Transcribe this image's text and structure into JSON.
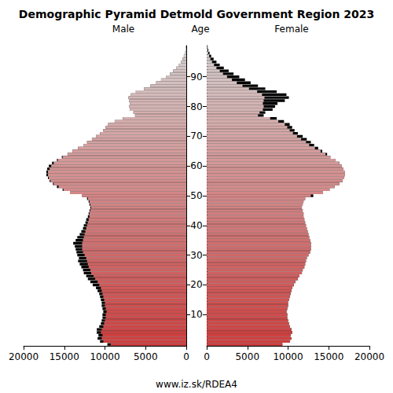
{
  "chart_data": {
    "type": "pyramid",
    "title": "Demographic Pyramid Detmold Government Region 2023",
    "y_label": "Age",
    "source": "www.iz.sk/RDEA4",
    "categories": [
      null,
      null,
      null,
      null,
      null,
      null,
      null,
      null,
      null,
      null,
      "10",
      null,
      null,
      null,
      null,
      null,
      null,
      null,
      null,
      null,
      "20",
      null,
      null,
      null,
      null,
      null,
      null,
      null,
      null,
      null,
      "30",
      null,
      null,
      null,
      null,
      null,
      null,
      null,
      null,
      null,
      "40",
      null,
      null,
      null,
      null,
      null,
      null,
      null,
      null,
      null,
      "50",
      null,
      null,
      null,
      null,
      null,
      null,
      null,
      null,
      null,
      "60",
      null,
      null,
      null,
      null,
      null,
      null,
      null,
      null,
      null,
      "70",
      null,
      null,
      null,
      null,
      null,
      null,
      null,
      null,
      null,
      "80",
      null,
      null,
      null,
      null,
      null,
      null,
      null,
      null,
      null,
      "90",
      null,
      null,
      null,
      null,
      null,
      null,
      null,
      null,
      null,
      null
    ],
    "series": [
      {
        "name": "Male",
        "color": "#000000",
        "values": [
          9700,
          10600,
          10900,
          10800,
          11000,
          11000,
          10700,
          10500,
          10400,
          10300,
          10300,
          10200,
          10300,
          10400,
          10400,
          10500,
          10600,
          10700,
          10900,
          11100,
          11500,
          11800,
          12100,
          12300,
          12600,
          12700,
          12900,
          13100,
          13300,
          13200,
          13400,
          13500,
          13600,
          13700,
          13900,
          13600,
          13400,
          13100,
          12900,
          12700,
          12600,
          12400,
          12300,
          12100,
          12000,
          11900,
          11800,
          11900,
          12000,
          12200,
          12800,
          14300,
          15200,
          15900,
          16400,
          16800,
          17000,
          17200,
          17200,
          17100,
          16900,
          16500,
          15900,
          15300,
          14600,
          14000,
          13300,
          12600,
          12200,
          11600,
          11100,
          10600,
          10200,
          9900,
          9600,
          8800,
          7800,
          6300,
          6500,
          6900,
          7000,
          6900,
          7000,
          7100,
          6800,
          6200,
          5200,
          4400,
          3700,
          3100,
          2500,
          2000,
          1600,
          1200,
          900,
          650,
          450,
          300,
          180,
          100,
          60
        ]
      },
      {
        "name": "Female",
        "color": "#000000",
        "values": [
          9300,
          10200,
          10400,
          10300,
          10500,
          10400,
          10200,
          10100,
          10000,
          9900,
          9900,
          9800,
          9900,
          10000,
          10000,
          10100,
          10200,
          10300,
          10400,
          10500,
          10700,
          10900,
          11200,
          11400,
          11700,
          11800,
          12000,
          12100,
          12200,
          12300,
          12500,
          12700,
          12800,
          12800,
          12800,
          12700,
          12600,
          12500,
          12400,
          12300,
          12200,
          12100,
          12000,
          11900,
          11900,
          11800,
          11700,
          11800,
          11900,
          12100,
          13100,
          14300,
          15100,
          15700,
          16300,
          16700,
          16900,
          17000,
          17000,
          16800,
          16600,
          16300,
          15800,
          15200,
          14800,
          14200,
          13700,
          13200,
          12800,
          12300,
          11800,
          11200,
          10800,
          10500,
          10200,
          9500,
          8600,
          7000,
          7200,
          8100,
          8400,
          8700,
          9600,
          10100,
          9800,
          8600,
          7200,
          6300,
          5400,
          4700,
          4000,
          3300,
          2700,
          2100,
          1600,
          1200,
          850,
          550,
          350,
          200,
          120
        ]
      }
    ],
    "colors": [
      "#d03c3c",
      "#d03d3d",
      "#d03f3f",
      "#d04040",
      "#d04242",
      "#d04343",
      "#d04545",
      "#d04646",
      "#d04848",
      "#d04949",
      "#d04b4b",
      "#d04c4c",
      "#d04e4e",
      "#d04f4f",
      "#d05151",
      "#d05252",
      "#d05454",
      "#d05555",
      "#d05757",
      "#d05858",
      "#d05a5a",
      "#d05b5b",
      "#d05d5d",
      "#d05e5e",
      "#d06060",
      "#d06161",
      "#d06262",
      "#d06464",
      "#d06565",
      "#d06767",
      "#d06868",
      "#d06a6a",
      "#d06b6b",
      "#d06d6d",
      "#d06e6e",
      "#d07070",
      "#d07171",
      "#d07373",
      "#d07474",
      "#d07676",
      "#d07777",
      "#d07979",
      "#d07a7a",
      "#d07c7c",
      "#d07d7d",
      "#d07f7f",
      "#d08080",
      "#d08282",
      "#d08383",
      "#d08585",
      "#d48686",
      "#d48787",
      "#d48989",
      "#d48a8a",
      "#d48c8c",
      "#d48d8d",
      "#d48f8f",
      "#d49090",
      "#d49292",
      "#d49393",
      "#d49595",
      "#d49696",
      "#d49898",
      "#d49999",
      "#d49b9b",
      "#d49c9c",
      "#d49e9e",
      "#d49f9f",
      "#d4a1a1",
      "#d4a2a2",
      "#d4a4a4",
      "#d4a5a5",
      "#d4a7a7",
      "#d4a8a8",
      "#d4aaaa",
      "#d4abab",
      "#d4acac",
      "#d4aeae",
      "#d4afaf",
      "#d4b1b1",
      "#d4b2b2",
      "#d4b4b4",
      "#d4b5b5",
      "#d4b7b7",
      "#d4b8b8",
      "#d4baba",
      "#d4bbbb",
      "#d4bdbd",
      "#d4bebe",
      "#d4c0c0",
      "#d4c1c1",
      "#d4c3c3",
      "#d4c4c4",
      "#d4c6c6",
      "#d4c7c7",
      "#d4c9c9",
      "#d4caca",
      "#d4cccc",
      "#d4cdcd",
      "#d4cfcf",
      "#d4d0d0"
    ],
    "xlim": [
      0,
      20000
    ],
    "xticks": [
      0,
      5000,
      10000,
      15000,
      20000
    ],
    "grid": false
  }
}
